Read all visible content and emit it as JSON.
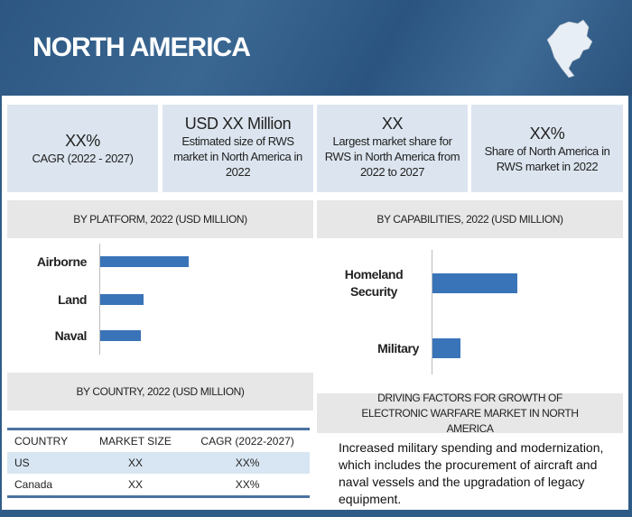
{
  "header": {
    "title": "NORTH AMERICA",
    "map_icon": "north-america-map-icon"
  },
  "stats": [
    {
      "value": "XX%",
      "desc": "CAGR (2022 - 2027)"
    },
    {
      "value": "USD XX Million",
      "desc": "Estimated size of RWS market in North America in 2022"
    },
    {
      "value": "XX",
      "desc": "Largest market share for RWS in North America from 2022 to 2027"
    },
    {
      "value": "XX%",
      "desc": "Share of North America in RWS market in 2022"
    }
  ],
  "chart_data": [
    {
      "type": "bar",
      "title": "BY PLATFORM, 2022 (USD MILLION)",
      "orientation": "horizontal",
      "categories": [
        "Airborne",
        "Land",
        "Naval"
      ],
      "values": [
        98,
        48,
        45
      ],
      "units": "relative"
    },
    {
      "type": "bar",
      "title": "BY CAPABILITIES,  2022 (USD MILLION)",
      "orientation": "horizontal",
      "categories": [
        "Homeland Security",
        "Military"
      ],
      "values": [
        94,
        31
      ],
      "units": "relative"
    }
  ],
  "country": {
    "title": "BY COUNTRY, 2022 (USD MILLION)",
    "headers": [
      "COUNTRY",
      "MARKET SIZE",
      "CAGR (2022-2027)"
    ],
    "rows": [
      [
        "US",
        "XX",
        "XX%"
      ],
      [
        "Canada",
        "XX",
        "XX%"
      ]
    ]
  },
  "drivers": {
    "title": "DRIVING FACTORS FOR GROWTH OF ELECTRONIC WARFARE MARKET IN NORTH AMERICA",
    "text": "Increased military spending and modernization, which includes the procurement of aircraft and naval vessels and the upgradation  of legacy equipment."
  },
  "colors": {
    "header": "#2f5b87",
    "bar": "#3a74b8",
    "stat_bg": "#dce5ef"
  }
}
